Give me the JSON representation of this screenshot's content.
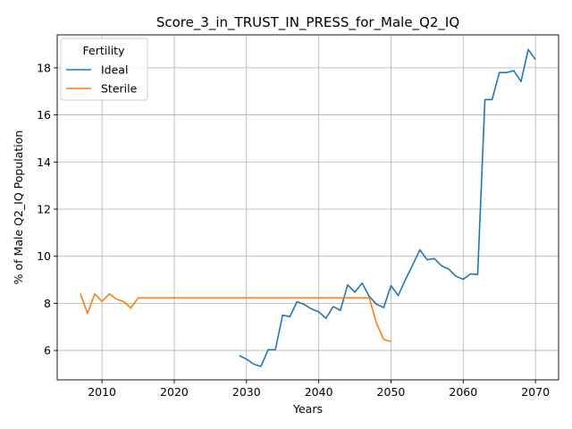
{
  "chart_data": {
    "type": "line",
    "title": "Score_3_in_TRUST_IN_PRESS_for_Male_Q2_IQ",
    "xlabel": "Years",
    "ylabel": "% of Male Q2_IQ Population",
    "xlim": [
      2003.8,
      2073.2
    ],
    "ylim": [
      4.75,
      19.4
    ],
    "xticks": [
      2010,
      2020,
      2030,
      2040,
      2050,
      2060,
      2070
    ],
    "yticks": [
      6,
      8,
      10,
      12,
      14,
      16,
      18
    ],
    "grid": true,
    "legend": {
      "title": "Fertility",
      "placement": "top-left"
    },
    "series": [
      {
        "name": "Ideal",
        "color": "#1f77b4",
        "x": [
          2029,
          2030,
          2031,
          2032,
          2033,
          2034,
          2035,
          2036,
          2037,
          2038,
          2039,
          2040,
          2041,
          2042,
          2043,
          2044,
          2045,
          2046,
          2047,
          2048,
          2049,
          2050,
          2051,
          2052,
          2053,
          2054,
          2055,
          2056,
          2057,
          2058,
          2059,
          2060,
          2061,
          2062,
          2063,
          2064,
          2065,
          2066,
          2067,
          2068,
          2069,
          2070
        ],
        "y": [
          5.78,
          5.63,
          5.42,
          5.32,
          6.03,
          6.03,
          7.5,
          7.43,
          8.07,
          7.95,
          7.76,
          7.64,
          7.36,
          7.86,
          7.7,
          8.78,
          8.47,
          8.86,
          8.29,
          7.96,
          7.82,
          8.75,
          8.33,
          9.0,
          9.63,
          10.27,
          9.85,
          9.9,
          9.59,
          9.45,
          9.15,
          9.02,
          9.25,
          9.22,
          16.65,
          16.65,
          17.8,
          17.8,
          17.88,
          17.42,
          18.78,
          18.35
        ]
      },
      {
        "name": "Sterile",
        "color": "#ff7f0e",
        "x": [
          2007,
          2008,
          2009,
          2010,
          2011,
          2012,
          2013,
          2014,
          2015,
          2016,
          2017,
          2018,
          2019,
          2020,
          2021,
          2022,
          2023,
          2024,
          2025,
          2026,
          2027,
          2028,
          2029,
          2030,
          2031,
          2032,
          2033,
          2034,
          2035,
          2036,
          2037,
          2038,
          2039,
          2040,
          2041,
          2042,
          2043,
          2044,
          2045,
          2046,
          2047,
          2048,
          2049,
          2050
        ],
        "y": [
          8.42,
          7.57,
          8.4,
          8.08,
          8.4,
          8.18,
          8.07,
          7.8,
          8.23,
          8.23,
          8.23,
          8.23,
          8.23,
          8.23,
          8.23,
          8.23,
          8.23,
          8.23,
          8.23,
          8.23,
          8.23,
          8.23,
          8.23,
          8.23,
          8.23,
          8.23,
          8.23,
          8.23,
          8.23,
          8.23,
          8.23,
          8.23,
          8.23,
          8.23,
          8.23,
          8.23,
          8.23,
          8.23,
          8.23,
          8.23,
          8.23,
          7.15,
          6.46,
          6.38
        ]
      }
    ]
  }
}
